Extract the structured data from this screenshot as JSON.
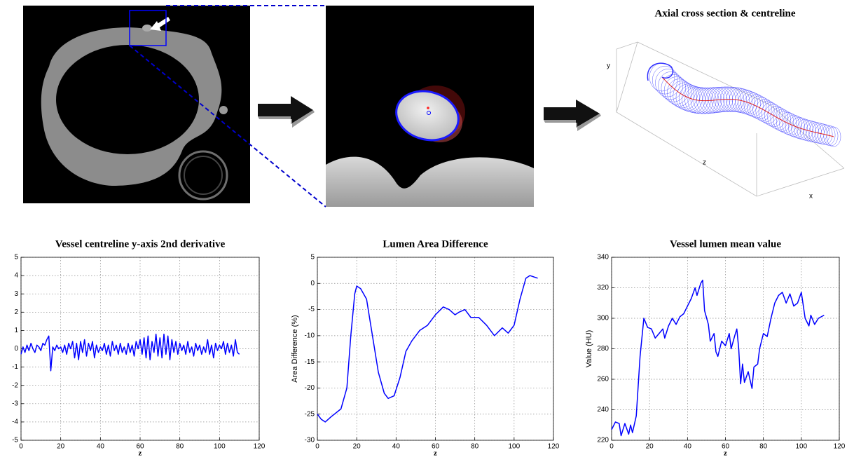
{
  "panels": {
    "centreline_3d": {
      "title": "Axial cross section & centreline",
      "x_label": "x",
      "y_label": "y",
      "z_label": "z"
    }
  },
  "chart_data": [
    {
      "type": "line",
      "title": "Vessel centreline y-axis 2nd derivative",
      "x_label": "z",
      "color": "#0000ff",
      "grid": true,
      "xlim": [
        0,
        120
      ],
      "xticks": [
        0,
        20,
        40,
        60,
        80,
        100,
        120
      ],
      "ylim": [
        -5,
        5
      ],
      "yticks": [
        -5,
        -4,
        -3,
        -2,
        -1,
        0,
        1,
        2,
        3,
        4,
        5
      ],
      "x": [
        0,
        1,
        2,
        3,
        4,
        5,
        6,
        7,
        8,
        9,
        10,
        11,
        12,
        13,
        14,
        15,
        16,
        17,
        18,
        19,
        20,
        21,
        22,
        23,
        24,
        25,
        26,
        27,
        28,
        29,
        30,
        31,
        32,
        33,
        34,
        35,
        36,
        37,
        38,
        39,
        40,
        41,
        42,
        43,
        44,
        45,
        46,
        47,
        48,
        49,
        50,
        51,
        52,
        53,
        54,
        55,
        56,
        57,
        58,
        59,
        60,
        61,
        62,
        63,
        64,
        65,
        66,
        67,
        68,
        69,
        70,
        71,
        72,
        73,
        74,
        75,
        76,
        77,
        78,
        79,
        80,
        81,
        82,
        83,
        84,
        85,
        86,
        87,
        88,
        89,
        90,
        91,
        92,
        93,
        94,
        95,
        96,
        97,
        98,
        99,
        100,
        101,
        102,
        103,
        104,
        105,
        106,
        107,
        108,
        109,
        110
      ],
      "values": [
        -0.3,
        0.1,
        -0.2,
        0.2,
        -0.1,
        0.3,
        0,
        -0.2,
        0.2,
        0.1,
        -0.1,
        0.3,
        0.2,
        0.5,
        0.7,
        -1.2,
        0.1,
        -0.1,
        0.2,
        0,
        0.1,
        -0.2,
        0.2,
        -0.3,
        0.3,
        0,
        0.4,
        -0.5,
        0.3,
        -0.6,
        0.4,
        -0.2,
        0.5,
        -0.4,
        0.3,
        -0.1,
        0.4,
        -0.5,
        0.2,
        -0.2,
        0.1,
        -0.1,
        0.3,
        -0.3,
        0.2,
        -0.4,
        0.4,
        -0.1,
        0.2,
        -0.3,
        0.3,
        -0.2,
        0.1,
        -0.3,
        0.3,
        -0.2,
        0.2,
        -0.4,
        0.4,
        0,
        0.5,
        -0.3,
        0.6,
        -0.5,
        0.7,
        -0.6,
        0.4,
        -0.2,
        0.8,
        -0.4,
        0.6,
        -0.5,
        0.8,
        -0.3,
        0.7,
        -0.6,
        0.5,
        -0.2,
        0.4,
        -0.3,
        0.3,
        -0.1,
        0.2,
        -0.3,
        0.4,
        -0.2,
        0.1,
        -0.4,
        0.3,
        -0.1,
        0.2,
        -0.3,
        0.1,
        -0.2,
        0.5,
        -0.3,
        0.2,
        -0.5,
        0.3,
        -0.1,
        0.2,
        0,
        0.4,
        -0.3,
        0.3,
        -0.2,
        0.2,
        -0.4,
        0.5,
        -0.2,
        -0.3
      ]
    },
    {
      "type": "line",
      "title": "Lumen Area Difference",
      "x_label": "z",
      "y_label": "Area Difference (%)",
      "color": "#0000ff",
      "grid": true,
      "xlim": [
        0,
        120
      ],
      "xticks": [
        0,
        20,
        40,
        60,
        80,
        100,
        120
      ],
      "ylim": [
        -30,
        5
      ],
      "yticks": [
        -30,
        -25,
        -20,
        -15,
        -10,
        -5,
        0,
        5
      ],
      "x": [
        0,
        2,
        4,
        7,
        12,
        15,
        17,
        19,
        20,
        22,
        25,
        28,
        31,
        34,
        36,
        39,
        42,
        45,
        48,
        52,
        56,
        60,
        64,
        67,
        70,
        72,
        75,
        78,
        82,
        86,
        90,
        94,
        97,
        100,
        103,
        106,
        108,
        112
      ],
      "values": [
        -25,
        -26,
        -26.5,
        -25.5,
        -24,
        -20,
        -10,
        -2,
        -0.5,
        -1,
        -3,
        -10,
        -17,
        -21,
        -22,
        -21.5,
        -18,
        -13,
        -11,
        -9,
        -8,
        -6,
        -4.5,
        -5,
        -6,
        -5.5,
        -5,
        -6.5,
        -6.5,
        -8,
        -10,
        -8.5,
        -9.5,
        -8,
        -3,
        1,
        1.5,
        1
      ]
    },
    {
      "type": "line",
      "title": "Vessel lumen mean value",
      "x_label": "z",
      "y_label": "Value (HU)",
      "color": "#0000ff",
      "grid": true,
      "xlim": [
        0,
        120
      ],
      "xticks": [
        0,
        20,
        40,
        60,
        80,
        100,
        120
      ],
      "ylim": [
        220,
        340
      ],
      "yticks": [
        220,
        240,
        260,
        280,
        300,
        320,
        340
      ],
      "x": [
        0,
        2,
        4,
        5,
        7,
        9,
        10,
        11,
        13,
        15,
        17,
        19,
        21,
        23,
        25,
        27,
        28,
        30,
        32,
        34,
        36,
        38,
        40,
        42,
        44,
        45,
        47,
        48,
        49,
        51,
        52,
        54,
        55,
        56,
        58,
        60,
        62,
        63,
        65,
        66,
        67,
        68,
        69,
        70,
        72,
        74,
        75,
        77,
        78,
        80,
        82,
        84,
        86,
        88,
        90,
        92,
        94,
        96,
        98,
        100,
        102,
        104,
        105,
        107,
        109,
        112
      ],
      "values": [
        227,
        232,
        231,
        223,
        231,
        224,
        230,
        225,
        236,
        275,
        300,
        294,
        293,
        287,
        290,
        293,
        287,
        295,
        300,
        296,
        301,
        303,
        308,
        313,
        320,
        315,
        323,
        325,
        305,
        296,
        285,
        290,
        278,
        275,
        285,
        282,
        290,
        280,
        289,
        293,
        280,
        257,
        270,
        258,
        265,
        254,
        268,
        270,
        280,
        290,
        288,
        300,
        310,
        315,
        317,
        310,
        316,
        308,
        310,
        317,
        300,
        295,
        302,
        296,
        300,
        302
      ]
    }
  ]
}
